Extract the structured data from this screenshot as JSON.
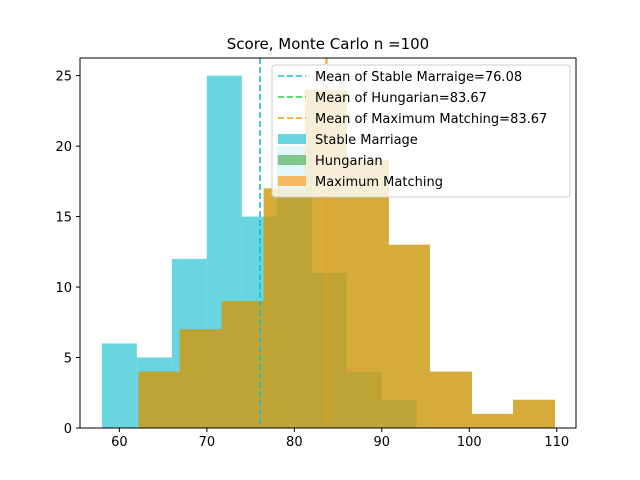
{
  "chart_data": {
    "type": "histogram",
    "title": "Score, Monte Carlo n =100",
    "xlabel": "",
    "ylabel": "",
    "xlim": [
      55.5,
      112.2
    ],
    "ylim": [
      0,
      26.25
    ],
    "xticks": [
      60,
      70,
      80,
      90,
      100,
      110
    ],
    "yticks": [
      0,
      5,
      10,
      15,
      20,
      25
    ],
    "grid": false,
    "legend_position": "top-right",
    "series": [
      {
        "name": "Stable Marriage",
        "color": "#17becf",
        "alpha": 0.65,
        "bins": [
          {
            "x0": 58.0,
            "x1": 62.0,
            "count": 6
          },
          {
            "x0": 62.0,
            "x1": 66.0,
            "count": 5
          },
          {
            "x0": 66.0,
            "x1": 70.0,
            "count": 12
          },
          {
            "x0": 70.0,
            "x1": 74.0,
            "count": 25
          },
          {
            "x0": 74.0,
            "x1": 78.0,
            "count": 15
          },
          {
            "x0": 78.0,
            "x1": 82.0,
            "count": 20
          },
          {
            "x0": 82.0,
            "x1": 86.0,
            "count": 11
          },
          {
            "x0": 86.0,
            "x1": 90.0,
            "count": 4
          },
          {
            "x0": 90.0,
            "x1": 94.0,
            "count": 2
          }
        ]
      },
      {
        "name": "Hungarian",
        "color": "#2ca02c",
        "alpha": 0.55,
        "bins": [
          {
            "x0": 62.2,
            "x1": 66.9,
            "count": 4
          },
          {
            "x0": 66.9,
            "x1": 71.7,
            "count": 7
          },
          {
            "x0": 71.7,
            "x1": 76.5,
            "count": 9
          },
          {
            "x0": 76.5,
            "x1": 81.2,
            "count": 17
          },
          {
            "x0": 81.2,
            "x1": 86.0,
            "count": 24
          },
          {
            "x0": 86.0,
            "x1": 90.8,
            "count": 19
          },
          {
            "x0": 90.8,
            "x1": 95.5,
            "count": 13
          },
          {
            "x0": 95.5,
            "x1": 100.3,
            "count": 4
          },
          {
            "x0": 100.3,
            "x1": 105.0,
            "count": 1
          },
          {
            "x0": 105.0,
            "x1": 109.8,
            "count": 2
          }
        ]
      },
      {
        "name": "Maximum Matching",
        "color": "#ff9a0e",
        "alpha": 0.65,
        "bins": [
          {
            "x0": 62.2,
            "x1": 66.9,
            "count": 4
          },
          {
            "x0": 66.9,
            "x1": 71.7,
            "count": 7
          },
          {
            "x0": 71.7,
            "x1": 76.5,
            "count": 9
          },
          {
            "x0": 76.5,
            "x1": 81.2,
            "count": 17
          },
          {
            "x0": 81.2,
            "x1": 86.0,
            "count": 24
          },
          {
            "x0": 86.0,
            "x1": 90.8,
            "count": 19
          },
          {
            "x0": 90.8,
            "x1": 95.5,
            "count": 13
          },
          {
            "x0": 95.5,
            "x1": 100.3,
            "count": 4
          },
          {
            "x0": 100.3,
            "x1": 105.0,
            "count": 1
          },
          {
            "x0": 105.0,
            "x1": 109.8,
            "count": 2
          }
        ]
      }
    ],
    "mean_lines": [
      {
        "label": "Mean of Stable Marraige=76.08",
        "value": 76.08,
        "color": "#17becf"
      },
      {
        "label": "Mean of Hungarian=83.67",
        "value": 83.67,
        "color": "#2ecc40"
      },
      {
        "label": "Mean of Maximum Matching=83.67",
        "value": 83.67,
        "color": "#ff9a0e"
      }
    ]
  }
}
